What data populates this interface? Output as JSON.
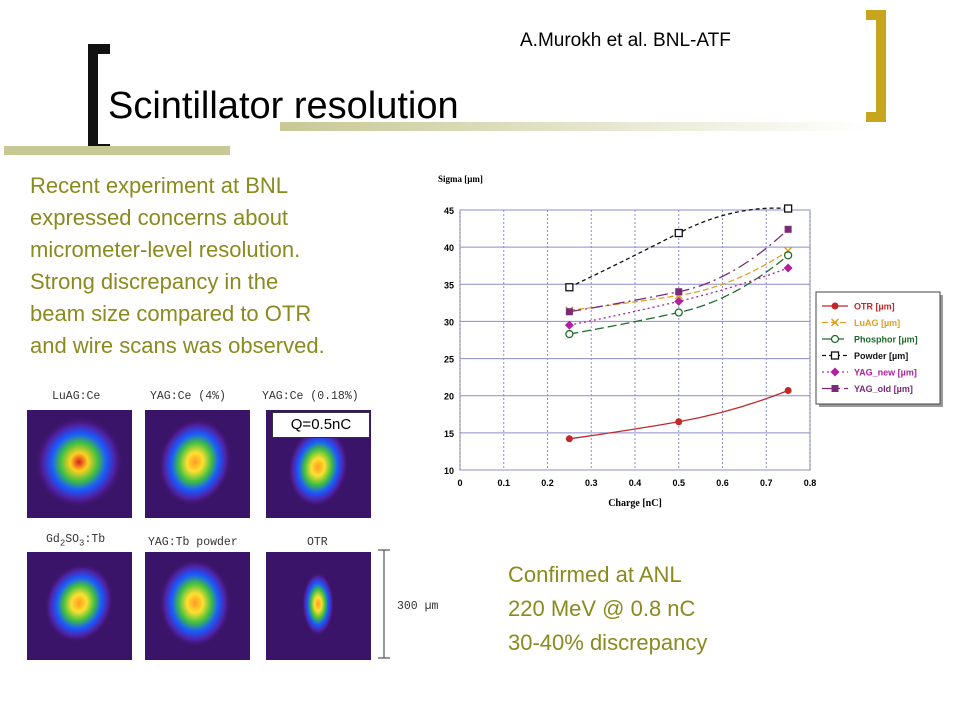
{
  "slide": {
    "author": "A.Murokh et al.  BNL-ATF",
    "title": "Scintillator resolution",
    "body_lines": [
      "Recent experiment at BNL",
      "expressed concerns about",
      "micrometer-level resolution.",
      "Strong discrepancy in the",
      "beam size compared to OTR",
      "and wire scans was observed."
    ],
    "confirm_lines": [
      "Confirmed at ANL",
      "220 MeV @ 0.8 nC",
      "30-40% discrepancy"
    ]
  },
  "images": {
    "labels": [
      "LuAG:Ce",
      "YAG:Ce  (4%)",
      "YAG:Ce  (0.18%)",
      "Gd",
      "2",
      "SO",
      "3",
      ":Tb",
      "YAG:Tb powder",
      "OTR"
    ],
    "charge_label": "Q=0.5nC",
    "scale_label": "300 µm"
  },
  "colors": {
    "accent_gold": "#c8a51e",
    "text_olive": "#8a8a1e",
    "bar_khaki": "#c8c896"
  },
  "chart_data": {
    "type": "line",
    "ylabel": "Sigma [µm]",
    "xlabel": "Charge [nC]",
    "xlim": [
      0,
      0.8
    ],
    "ylim": [
      10,
      45
    ],
    "x_ticks": [
      "0",
      "0.1",
      "0.2",
      "0.3",
      "0.4",
      "0.5",
      "0.6",
      "0.7",
      "0.8"
    ],
    "y_ticks": [
      "10",
      "15",
      "20",
      "25",
      "30",
      "35",
      "40",
      "45"
    ],
    "grid": true,
    "legend_position": "right",
    "series": [
      {
        "name": "OTR [µm]",
        "color": "#c0282a",
        "dash": "",
        "marker": "circle",
        "x": [
          0.25,
          0.5,
          0.75
        ],
        "y": [
          14.2,
          16.5,
          20.7
        ]
      },
      {
        "name": "LuAG [µm]",
        "color": "#e0a020",
        "dash": "6,3",
        "marker": "x",
        "x": [
          0.25,
          0.5,
          0.75
        ],
        "y": [
          31.5,
          33.5,
          39.5
        ]
      },
      {
        "name": "Phosphor [µm]",
        "color": "#1f6b2b",
        "dash": "9,4",
        "marker": "circle-open",
        "x": [
          0.25,
          0.5,
          0.75
        ],
        "y": [
          28.3,
          31.2,
          38.9
        ]
      },
      {
        "name": "Powder [µm]",
        "color": "#111111",
        "dash": "4,3",
        "marker": "square-open",
        "x": [
          0.25,
          0.5,
          0.75
        ],
        "y": [
          34.6,
          41.9,
          45.2
        ]
      },
      {
        "name": "YAG_new [µm]",
        "color": "#b020a0",
        "dash": "2,3",
        "marker": "diamond",
        "x": [
          0.25,
          0.5,
          0.75
        ],
        "y": [
          29.5,
          32.7,
          37.2
        ]
      },
      {
        "name": "YAG_old [µm]",
        "color": "#7a2a7a",
        "dash": "12,4,2,4",
        "marker": "square",
        "x": [
          0.25,
          0.5,
          0.75
        ],
        "y": [
          31.3,
          34.0,
          42.4
        ]
      }
    ]
  }
}
